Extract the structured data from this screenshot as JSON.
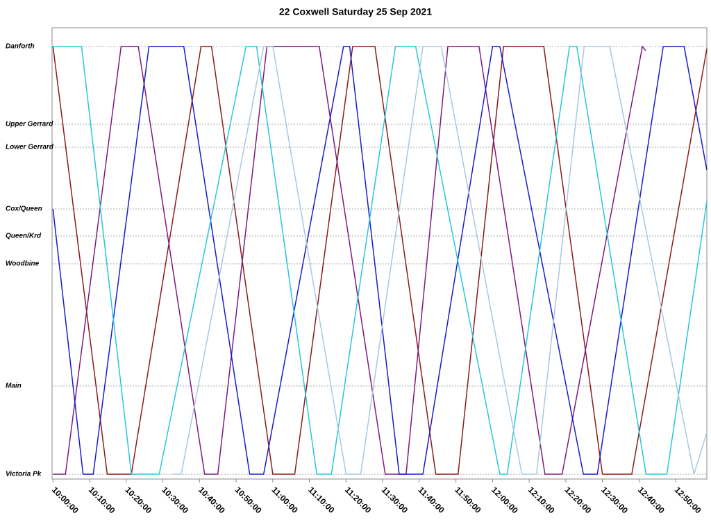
{
  "chart_data": {
    "type": "line",
    "title": "22 Coxwell Saturday 25 Sep 2021",
    "xlim": [
      "09:59:45",
      "12:58:30"
    ],
    "xticks": [
      "10:00:00",
      "10:10:00",
      "10:20:00",
      "10:30:00",
      "10:40:00",
      "10:50:00",
      "11:00:00",
      "11:10:00",
      "11:20:00",
      "11:30:00",
      "11:40:00",
      "11:50:00",
      "12:00:00",
      "12:10:00",
      "12:20:00",
      "12:30:00",
      "12:40:00",
      "12:50:00"
    ],
    "ylim": [
      -0.07,
      6.43
    ],
    "yticks": [
      {
        "value": 0,
        "label": "Victoria Pk"
      },
      {
        "value": 1.27,
        "label": "Main"
      },
      {
        "value": 3.03,
        "label": "Woodbine"
      },
      {
        "value": 3.43,
        "label": "Queen/Krd"
      },
      {
        "value": 3.82,
        "label": "Cox/Queen"
      },
      {
        "value": 4.71,
        "label": "Lower Gerrard"
      },
      {
        "value": 5.04,
        "label": "Upper Gerrard"
      },
      {
        "value": 6.16,
        "label": "Danforth"
      }
    ],
    "grid": true,
    "series": [
      {
        "color": "#8b1a1a",
        "x": [
          "10:00:00",
          "10:14:48",
          "10:21:24",
          "10:40:24",
          "10:43:18",
          "11:00:00",
          "11:06:00",
          "11:21:48",
          "11:27:54",
          "11:44:30",
          "11:50:36",
          "12:03:00",
          "12:14:00",
          "12:30:00",
          "12:38:00",
          "12:58:30"
        ],
        "values": [
          6.16,
          0,
          0,
          6.16,
          6.16,
          0,
          0,
          6.16,
          6.16,
          0,
          0,
          6.16,
          6.16,
          0,
          0,
          6.13
        ]
      },
      {
        "color": "#7d1a7d",
        "x": [
          "10:00:00",
          "10:03:24",
          "10:18:36",
          "10:23:18",
          "10:41:24",
          "10:45:00",
          "10:58:24",
          "11:12:42",
          "11:30:42",
          "11:36:24",
          "11:47:48",
          "11:56:18",
          "12:14:18",
          "12:19:00",
          "12:40:54",
          "12:41:48"
        ],
        "values": [
          0,
          0,
          6.16,
          6.16,
          0,
          0,
          6.16,
          6.16,
          0,
          0,
          6.16,
          6.16,
          0,
          0,
          6.16,
          6.1
        ]
      },
      {
        "color": "#1a1acc",
        "x": [
          "10:00:00",
          "10:08:12",
          "10:11:00",
          "10:26:12",
          "10:35:42",
          "10:53:42",
          "10:57:30",
          "11:19:18",
          "11:21:00",
          "11:34:30",
          "11:41:00",
          "12:00:00",
          "12:02:00",
          "12:24:48",
          "12:28:36",
          "12:46:36",
          "12:52:18",
          "12:58:30"
        ],
        "values": [
          3.82,
          0,
          0,
          6.16,
          6.16,
          0,
          0,
          6.16,
          6.16,
          0,
          0,
          6.16,
          6.16,
          0,
          0,
          6.16,
          6.16,
          4.38
        ]
      },
      {
        "color": "#26c6da",
        "x": [
          "10:00:00",
          "10:07:48",
          "10:21:24",
          "10:29:00",
          "10:52:42",
          "10:55:36",
          "11:12:00",
          "11:16:00",
          "11:33:30",
          "11:39:00",
          "12:02:00",
          "12:04:00",
          "12:21:00",
          "12:23:00",
          "12:41:54",
          "12:47:36",
          "12:58:30"
        ],
        "values": [
          6.16,
          6.16,
          0,
          0,
          6.16,
          6.16,
          0,
          0,
          6.16,
          6.16,
          0,
          0,
          6.16,
          6.16,
          0,
          0,
          3.93
        ]
      },
      {
        "color": "#a8c8e0",
        "x": [
          "10:32:48",
          "10:35:00",
          "10:57:30",
          "11:00:00",
          "11:20:00",
          "11:24:00",
          "11:41:00",
          "11:46:00",
          "12:08:00",
          "12:12:00",
          "12:25:00",
          "12:32:00",
          "12:55:00",
          "12:58:30"
        ],
        "values": [
          0,
          0,
          6.16,
          6.16,
          0,
          0,
          6.16,
          6.16,
          0,
          0,
          6.16,
          6.16,
          0,
          0.6
        ]
      }
    ]
  }
}
